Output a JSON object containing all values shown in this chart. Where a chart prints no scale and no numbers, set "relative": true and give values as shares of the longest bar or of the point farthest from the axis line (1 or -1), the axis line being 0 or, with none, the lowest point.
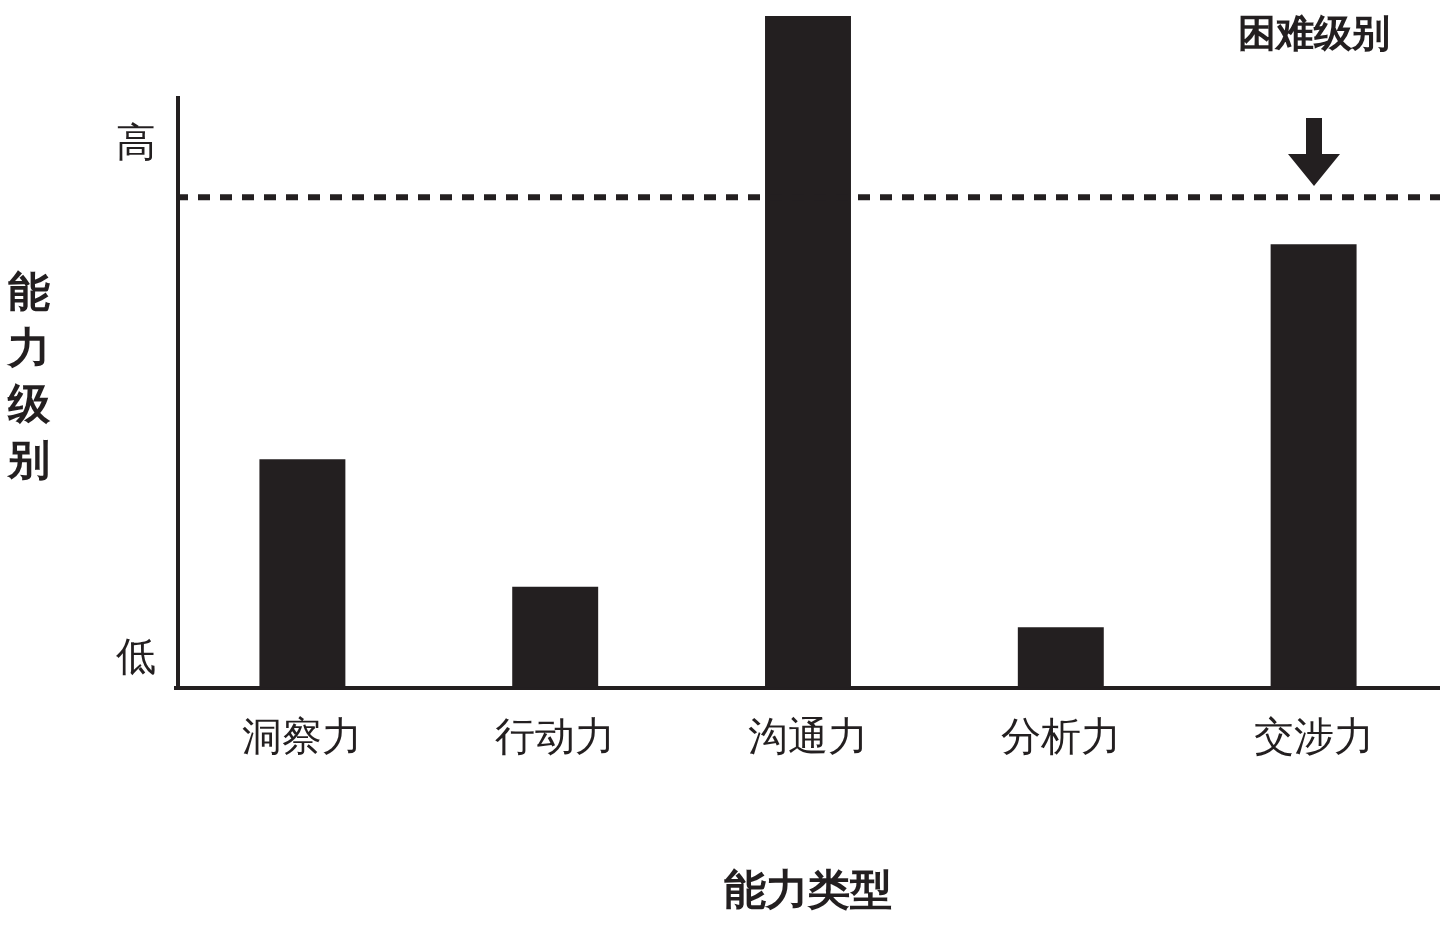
{
  "chart_data": {
    "type": "bar",
    "relative": true,
    "xlabel": "能力类型",
    "ylabel": "能力级别",
    "categories": [
      "洞察力",
      "行动力",
      "沟通力",
      "分析力",
      "交涉力"
    ],
    "values": [
      0.34,
      0.15,
      1,
      0.09,
      0.66
    ],
    "color": "#231f20",
    "annotations": [
      "高",
      "低"
    ],
    "ref_lines": [
      {
        "axis": "y",
        "value": 0.73,
        "label": "困难级别",
        "line_style": "dashed",
        "color": "#231f20"
      }
    ],
    "grid": false,
    "legend": false
  }
}
